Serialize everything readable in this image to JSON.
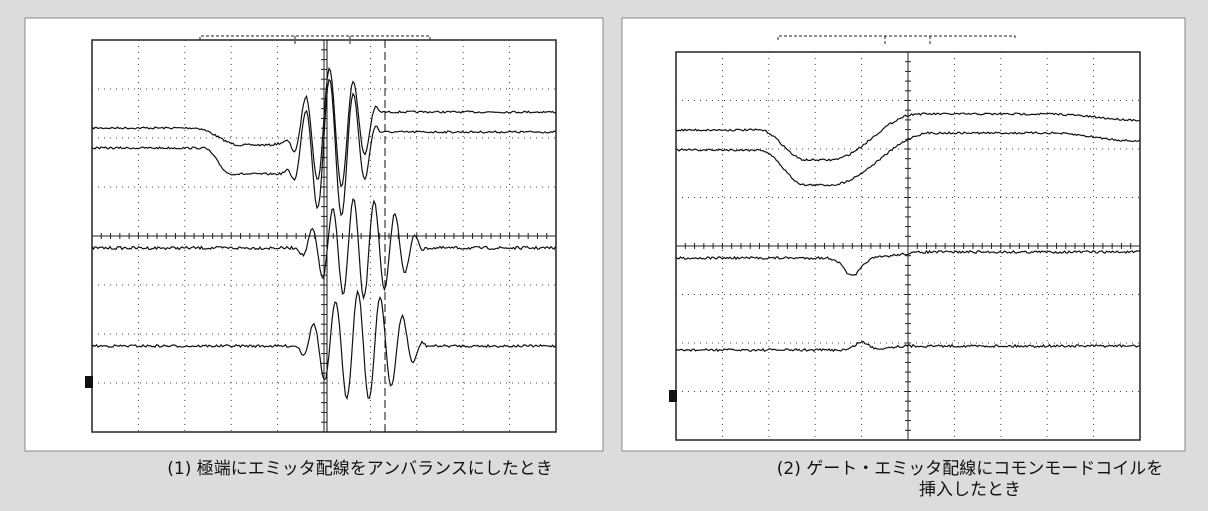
{
  "panels": [
    {
      "caption": [
        "(1) 極端にエミッタ配線をアンバランスにしたとき"
      ]
    },
    {
      "caption": [
        "(2) ゲート・エミッタ配線にコモンモードコイルを",
        "挿入したとき"
      ]
    }
  ]
}
